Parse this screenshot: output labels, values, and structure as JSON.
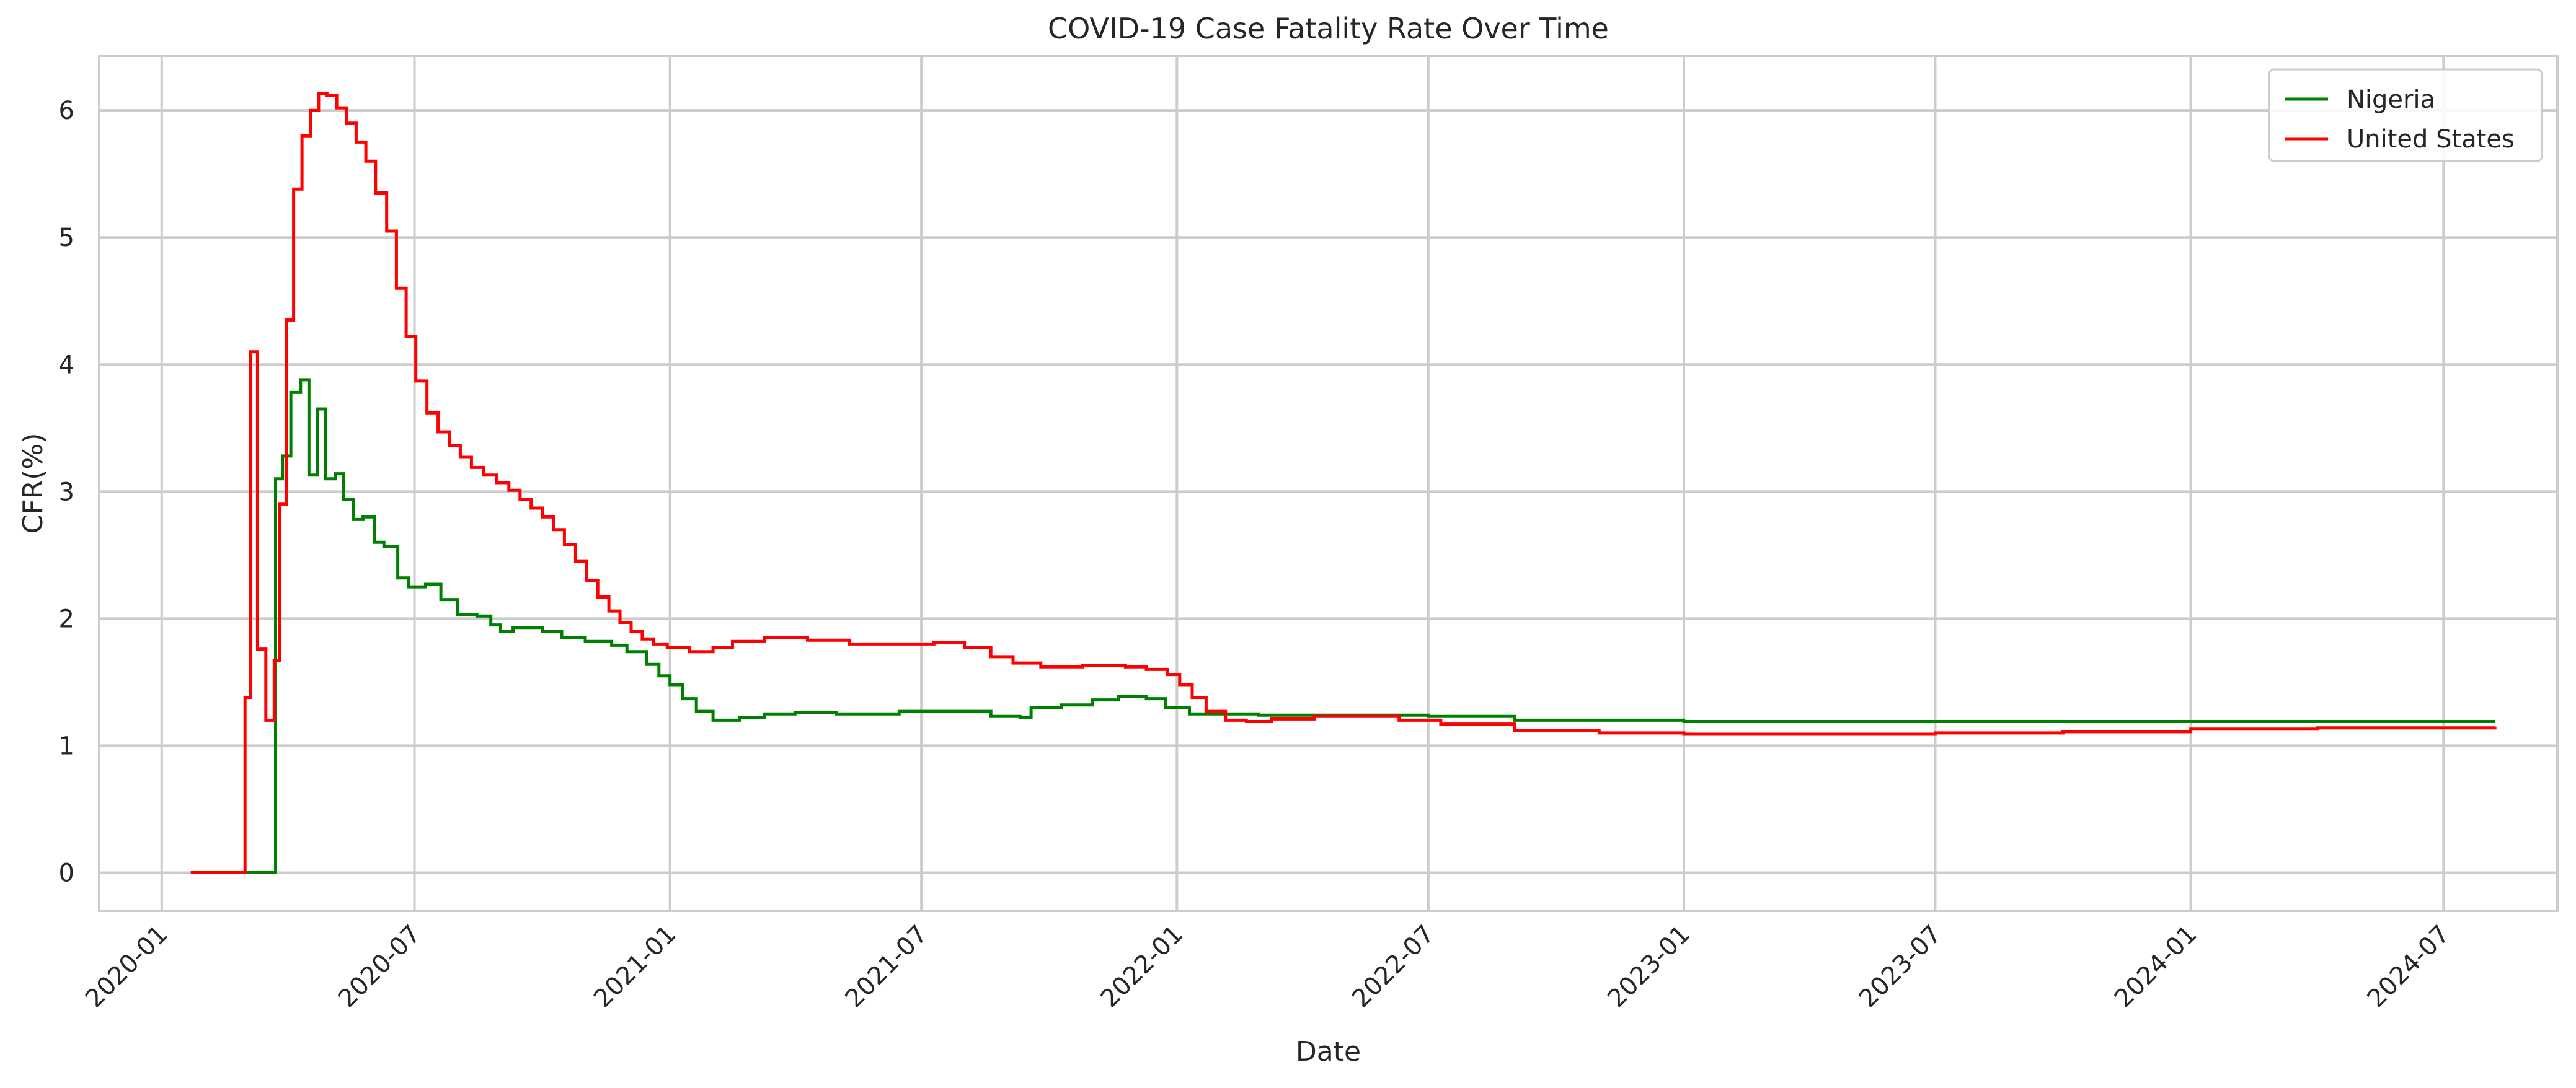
{
  "chart_data": {
    "type": "line",
    "title": "COVID-19 Case Fatality Rate Over Time",
    "xlabel": "Date",
    "ylabel": "CFR(%)",
    "grid": true,
    "legend_position": "top-right",
    "xlim": [
      "2019-11-17",
      "2024-09-21"
    ],
    "ylim": [
      -0.3,
      6.43
    ],
    "x_ticks": [
      "2020-01",
      "2020-07",
      "2021-01",
      "2021-07",
      "2022-01",
      "2022-07",
      "2023-01",
      "2023-07",
      "2024-01",
      "2024-07"
    ],
    "y_ticks": [
      0,
      1,
      2,
      3,
      4,
      5,
      6
    ],
    "series": [
      {
        "name": "Nigeria",
        "color": "#008000",
        "step": true,
        "points": [
          [
            "2020-01-22",
            0
          ],
          [
            "2020-03-22",
            0
          ],
          [
            "2020-03-23",
            3.1
          ],
          [
            "2020-03-28",
            3.28
          ],
          [
            "2020-04-03",
            3.78
          ],
          [
            "2020-04-10",
            3.88
          ],
          [
            "2020-04-16",
            3.13
          ],
          [
            "2020-04-22",
            3.65
          ],
          [
            "2020-04-28",
            3.1
          ],
          [
            "2020-05-05",
            3.14
          ],
          [
            "2020-05-11",
            2.94
          ],
          [
            "2020-05-18",
            2.78
          ],
          [
            "2020-05-25",
            2.8
          ],
          [
            "2020-06-02",
            2.6
          ],
          [
            "2020-06-09",
            2.57
          ],
          [
            "2020-06-19",
            2.32
          ],
          [
            "2020-06-27",
            2.25
          ],
          [
            "2020-07-09",
            2.27
          ],
          [
            "2020-07-20",
            2.15
          ],
          [
            "2020-08-01",
            2.03
          ],
          [
            "2020-08-15",
            2.02
          ],
          [
            "2020-08-25",
            1.95
          ],
          [
            "2020-09-01",
            1.9
          ],
          [
            "2020-09-10",
            1.93
          ],
          [
            "2020-10-01",
            1.9
          ],
          [
            "2020-10-15",
            1.85
          ],
          [
            "2020-11-01",
            1.82
          ],
          [
            "2020-11-20",
            1.79
          ],
          [
            "2020-12-01",
            1.74
          ],
          [
            "2020-12-15",
            1.64
          ],
          [
            "2020-12-24",
            1.55
          ],
          [
            "2021-01-01",
            1.48
          ],
          [
            "2021-01-10",
            1.37
          ],
          [
            "2021-01-20",
            1.27
          ],
          [
            "2021-02-01",
            1.2
          ],
          [
            "2021-02-20",
            1.22
          ],
          [
            "2021-03-10",
            1.25
          ],
          [
            "2021-04-01",
            1.26
          ],
          [
            "2021-05-01",
            1.25
          ],
          [
            "2021-06-01",
            1.25
          ],
          [
            "2021-06-15",
            1.27
          ],
          [
            "2021-07-15",
            1.27
          ],
          [
            "2021-08-20",
            1.23
          ],
          [
            "2021-09-10",
            1.22
          ],
          [
            "2021-09-18",
            1.3
          ],
          [
            "2021-10-10",
            1.32
          ],
          [
            "2021-11-01",
            1.36
          ],
          [
            "2021-11-20",
            1.39
          ],
          [
            "2021-12-10",
            1.37
          ],
          [
            "2021-12-24",
            1.3
          ],
          [
            "2022-01-10",
            1.25
          ],
          [
            "2022-03-01",
            1.24
          ],
          [
            "2022-05-01",
            1.24
          ],
          [
            "2022-07-01",
            1.23
          ],
          [
            "2022-09-01",
            1.2
          ],
          [
            "2023-01-01",
            1.19
          ],
          [
            "2023-07-01",
            1.19
          ],
          [
            "2024-01-01",
            1.19
          ],
          [
            "2024-08-07",
            1.19
          ]
        ]
      },
      {
        "name": "United States",
        "color": "#ff0000",
        "step": true,
        "points": [
          [
            "2020-01-22",
            0
          ],
          [
            "2020-02-28",
            0
          ],
          [
            "2020-03-01",
            1.38
          ],
          [
            "2020-03-05",
            4.1
          ],
          [
            "2020-03-10",
            1.76
          ],
          [
            "2020-03-16",
            1.2
          ],
          [
            "2020-03-22",
            1.67
          ],
          [
            "2020-03-26",
            2.9
          ],
          [
            "2020-03-31",
            4.35
          ],
          [
            "2020-04-05",
            5.38
          ],
          [
            "2020-04-11",
            5.8
          ],
          [
            "2020-04-17",
            6.0
          ],
          [
            "2020-04-23",
            6.13
          ],
          [
            "2020-04-29",
            6.12
          ],
          [
            "2020-05-06",
            6.02
          ],
          [
            "2020-05-13",
            5.9
          ],
          [
            "2020-05-20",
            5.75
          ],
          [
            "2020-05-27",
            5.6
          ],
          [
            "2020-06-03",
            5.35
          ],
          [
            "2020-06-11",
            5.05
          ],
          [
            "2020-06-18",
            4.6
          ],
          [
            "2020-06-25",
            4.22
          ],
          [
            "2020-07-02",
            3.87
          ],
          [
            "2020-07-10",
            3.62
          ],
          [
            "2020-07-18",
            3.47
          ],
          [
            "2020-07-26",
            3.36
          ],
          [
            "2020-08-03",
            3.27
          ],
          [
            "2020-08-11",
            3.19
          ],
          [
            "2020-08-20",
            3.13
          ],
          [
            "2020-08-29",
            3.07
          ],
          [
            "2020-09-07",
            3.01
          ],
          [
            "2020-09-15",
            2.94
          ],
          [
            "2020-09-23",
            2.87
          ],
          [
            "2020-10-01",
            2.8
          ],
          [
            "2020-10-09",
            2.7
          ],
          [
            "2020-10-17",
            2.58
          ],
          [
            "2020-10-25",
            2.45
          ],
          [
            "2020-11-02",
            2.3
          ],
          [
            "2020-11-10",
            2.17
          ],
          [
            "2020-11-18",
            2.06
          ],
          [
            "2020-11-26",
            1.97
          ],
          [
            "2020-12-04",
            1.9
          ],
          [
            "2020-12-12",
            1.84
          ],
          [
            "2020-12-20",
            1.8
          ],
          [
            "2020-12-30",
            1.77
          ],
          [
            "2021-01-15",
            1.74
          ],
          [
            "2021-02-01",
            1.77
          ],
          [
            "2021-02-15",
            1.82
          ],
          [
            "2021-03-10",
            1.85
          ],
          [
            "2021-04-10",
            1.83
          ],
          [
            "2021-05-10",
            1.8
          ],
          [
            "2021-06-10",
            1.8
          ],
          [
            "2021-07-10",
            1.81
          ],
          [
            "2021-08-01",
            1.77
          ],
          [
            "2021-08-20",
            1.7
          ],
          [
            "2021-09-05",
            1.65
          ],
          [
            "2021-09-25",
            1.62
          ],
          [
            "2021-10-25",
            1.63
          ],
          [
            "2021-11-25",
            1.62
          ],
          [
            "2021-12-10",
            1.6
          ],
          [
            "2021-12-25",
            1.56
          ],
          [
            "2022-01-03",
            1.48
          ],
          [
            "2022-01-12",
            1.38
          ],
          [
            "2022-01-22",
            1.27
          ],
          [
            "2022-02-05",
            1.2
          ],
          [
            "2022-02-20",
            1.19
          ],
          [
            "2022-03-10",
            1.21
          ],
          [
            "2022-04-10",
            1.23
          ],
          [
            "2022-05-10",
            1.23
          ],
          [
            "2022-06-10",
            1.2
          ],
          [
            "2022-07-10",
            1.17
          ],
          [
            "2022-09-01",
            1.12
          ],
          [
            "2022-11-01",
            1.1
          ],
          [
            "2023-01-01",
            1.09
          ],
          [
            "2023-04-01",
            1.09
          ],
          [
            "2023-07-01",
            1.1
          ],
          [
            "2023-10-01",
            1.11
          ],
          [
            "2024-01-01",
            1.13
          ],
          [
            "2024-04-01",
            1.14
          ],
          [
            "2024-08-07",
            1.15
          ]
        ]
      }
    ]
  }
}
